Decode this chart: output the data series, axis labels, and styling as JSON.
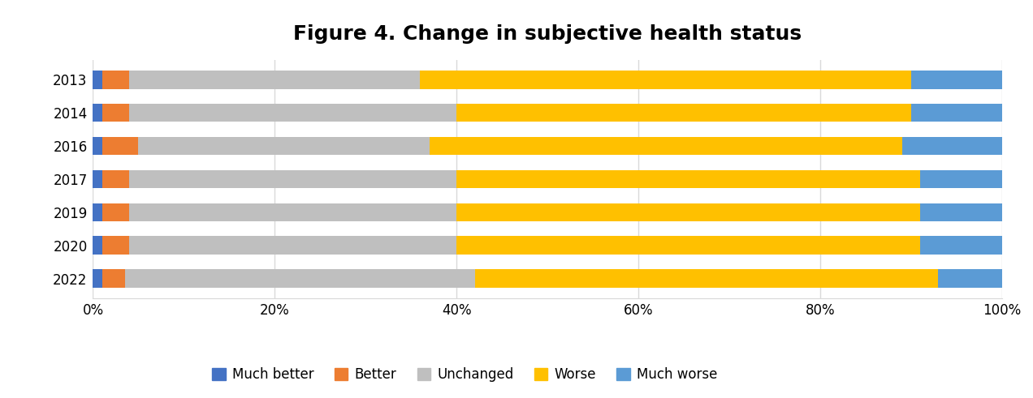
{
  "title": "Figure 4. Change in subjective health status",
  "years": [
    "2013",
    "2014",
    "2016",
    "2017",
    "2019",
    "2020",
    "2022"
  ],
  "categories": [
    "Much better",
    "Better",
    "Unchanged",
    "Worse",
    "Much worse"
  ],
  "colors": [
    "#4472c4",
    "#ed7d31",
    "#bfbfbf",
    "#ffc000",
    "#5b9bd5"
  ],
  "data": {
    "Much better": [
      1.0,
      1.0,
      1.0,
      1.0,
      1.0,
      1.0,
      1.0
    ],
    "Better": [
      3.0,
      3.0,
      4.0,
      3.0,
      3.0,
      3.0,
      2.5
    ],
    "Unchanged": [
      32.0,
      36.0,
      32.0,
      36.0,
      36.0,
      36.0,
      38.5
    ],
    "Worse": [
      54.0,
      50.0,
      52.0,
      51.0,
      51.0,
      51.0,
      51.0
    ],
    "Much worse": [
      10.0,
      10.0,
      11.0,
      9.0,
      9.0,
      9.0,
      7.0
    ]
  },
  "xlim": [
    0,
    100
  ],
  "xticks": [
    0,
    20,
    40,
    60,
    80,
    100
  ],
  "xticklabels": [
    "0%",
    "20%",
    "40%",
    "60%",
    "80%",
    "100%"
  ],
  "background_color": "#ffffff",
  "grid_color": "#d9d9d9",
  "title_fontsize": 18,
  "tick_fontsize": 12,
  "legend_fontsize": 12,
  "bar_height": 0.55
}
